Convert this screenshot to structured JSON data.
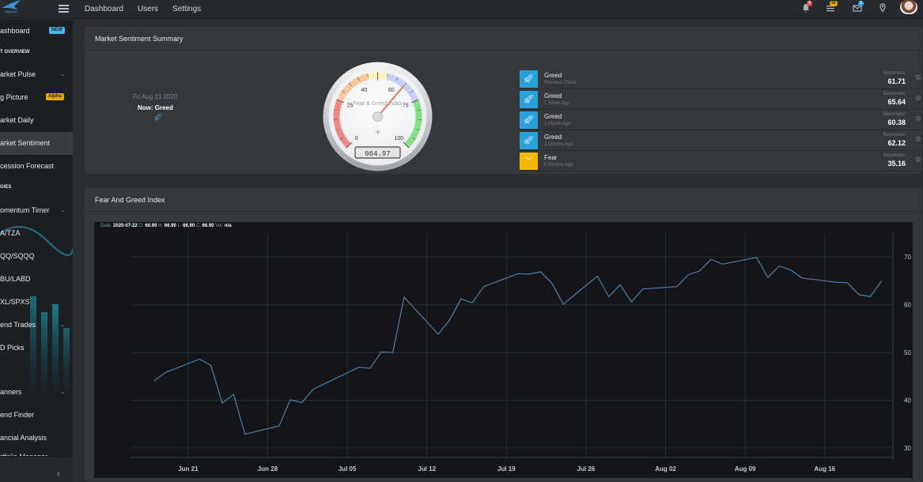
{
  "topbar": {
    "logo_text": "DayCurp",
    "nav": [
      "Dashboard",
      "Users",
      "Settings"
    ],
    "badges": {
      "notifications": "3",
      "tasks": "15",
      "messages": "1"
    },
    "icons": [
      "bell-icon",
      "list-icon",
      "mail-icon",
      "map-pin-icon"
    ]
  },
  "sidebar": {
    "items": [
      {
        "label": "ashboard",
        "badge": "NEW"
      },
      {
        "label": "T OVERVIEW",
        "heading": true
      },
      {
        "label": "arket Pulse",
        "chevron": "⌄"
      },
      {
        "label": "g Picture",
        "badge": "Alpha"
      },
      {
        "label": "arket Daily"
      },
      {
        "label": "arket Sentiment",
        "active": true
      },
      {
        "label": "cession Forecast"
      },
      {
        "label": "GIES",
        "heading": true
      },
      {
        "label": "omentum Timer",
        "chevron": "⌄"
      },
      {
        "label": "A/TZA"
      },
      {
        "label": "QQ/SQQQ"
      },
      {
        "label": "BU/LABD"
      },
      {
        "label": "XL/SPXS"
      },
      {
        "label": "end Trades",
        "chevron": "⌄"
      },
      {
        "label": "D Picks"
      },
      {
        "label": "anners",
        "chevron": "⌄"
      },
      {
        "label": "end Finder"
      },
      {
        "label": "ancial Analysis"
      },
      {
        "label": "rtfolio Manager"
      }
    ],
    "collapse_glyph": "‹"
  },
  "summary": {
    "title": "Market Sentiment Summary",
    "date": "Fri Aug 21 2020",
    "now_label": "Now: Greed",
    "gauge": {
      "title": "Fear & Greed Index",
      "unit": "°F",
      "value": 64.97,
      "readout": "064.97",
      "ticks": [
        "0",
        "25",
        "40",
        "60",
        "75",
        "100"
      ]
    },
    "barometers": [
      {
        "label": "Greed",
        "period": "Previous Close",
        "caption": "Barometer",
        "value": "61.71",
        "kind": "greed"
      },
      {
        "label": "Greed",
        "period": "1 Week Ago",
        "caption": "Barometer",
        "value": "65.64",
        "kind": "greed"
      },
      {
        "label": "Greed",
        "period": "1 Month Ago",
        "caption": "Barometer",
        "value": "60.38",
        "kind": "greed"
      },
      {
        "label": "Greed",
        "period": "3 Months Ago",
        "caption": "Barometer",
        "value": "62.12",
        "kind": "greed"
      },
      {
        "label": "Fear",
        "period": "6 Months Ago",
        "caption": "Barometer",
        "value": "35.16",
        "kind": "fear"
      }
    ],
    "colors": {
      "greed": "#29a2dc",
      "fear": "#f5b800"
    }
  },
  "fng": {
    "title": "Fear And Greed Index",
    "legend": {
      "date_label": "Date:",
      "date": "2020-07-22",
      "o_label": "O:",
      "o": "66.90",
      "h_label": "H:",
      "h": "66.90",
      "l_label": "L:",
      "l": "66.90",
      "c_label": "C:",
      "c": "66.90",
      "vol_label": "Vol:",
      "vol": "n/a"
    }
  },
  "chart_data": {
    "type": "line",
    "title": "",
    "xlabel": "",
    "ylabel": "",
    "x_ticks": [
      "Jun 21",
      "Jun 28",
      "Jul 05",
      "Jul 12",
      "Jul 19",
      "Jul 26",
      "Aug 02",
      "Aug 09",
      "Aug 16"
    ],
    "y_ticks": [
      30,
      40,
      50,
      60,
      70
    ],
    "ylim": [
      28,
      75
    ],
    "grid": true,
    "y_axis_side": "right",
    "line_color": "#4f7fa8",
    "x": [
      "2020-06-18",
      "2020-06-19",
      "2020-06-22",
      "2020-06-23",
      "2020-06-24",
      "2020-06-25",
      "2020-06-26",
      "2020-06-29",
      "2020-06-30",
      "2020-07-01",
      "2020-07-02",
      "2020-07-06",
      "2020-07-07",
      "2020-07-08",
      "2020-07-09",
      "2020-07-10",
      "2020-07-13",
      "2020-07-14",
      "2020-07-15",
      "2020-07-16",
      "2020-07-17",
      "2020-07-20",
      "2020-07-21",
      "2020-07-22",
      "2020-07-23",
      "2020-07-24",
      "2020-07-27",
      "2020-07-28",
      "2020-07-29",
      "2020-07-30",
      "2020-07-31",
      "2020-08-03",
      "2020-08-04",
      "2020-08-05",
      "2020-08-06",
      "2020-08-07",
      "2020-08-10",
      "2020-08-11",
      "2020-08-12",
      "2020-08-13",
      "2020-08-14",
      "2020-08-17",
      "2020-08-18",
      "2020-08-19",
      "2020-08-20",
      "2020-08-21"
    ],
    "values": [
      44,
      45.8,
      48.6,
      47.3,
      39.4,
      41.2,
      32.9,
      34.6,
      40.1,
      39.5,
      42.3,
      46.9,
      46.7,
      50.1,
      50.0,
      61.6,
      53.8,
      56.8,
      61.2,
      60.4,
      63.8,
      66.5,
      66.4,
      66.9,
      64.5,
      60.1,
      66.0,
      61.7,
      64.2,
      60.6,
      63.3,
      63.8,
      66.3,
      67.1,
      69.5,
      68.5,
      69.9,
      65.7,
      68.1,
      67.3,
      65.6,
      64.7,
      64.6,
      62.1,
      61.7,
      64.97
    ]
  }
}
